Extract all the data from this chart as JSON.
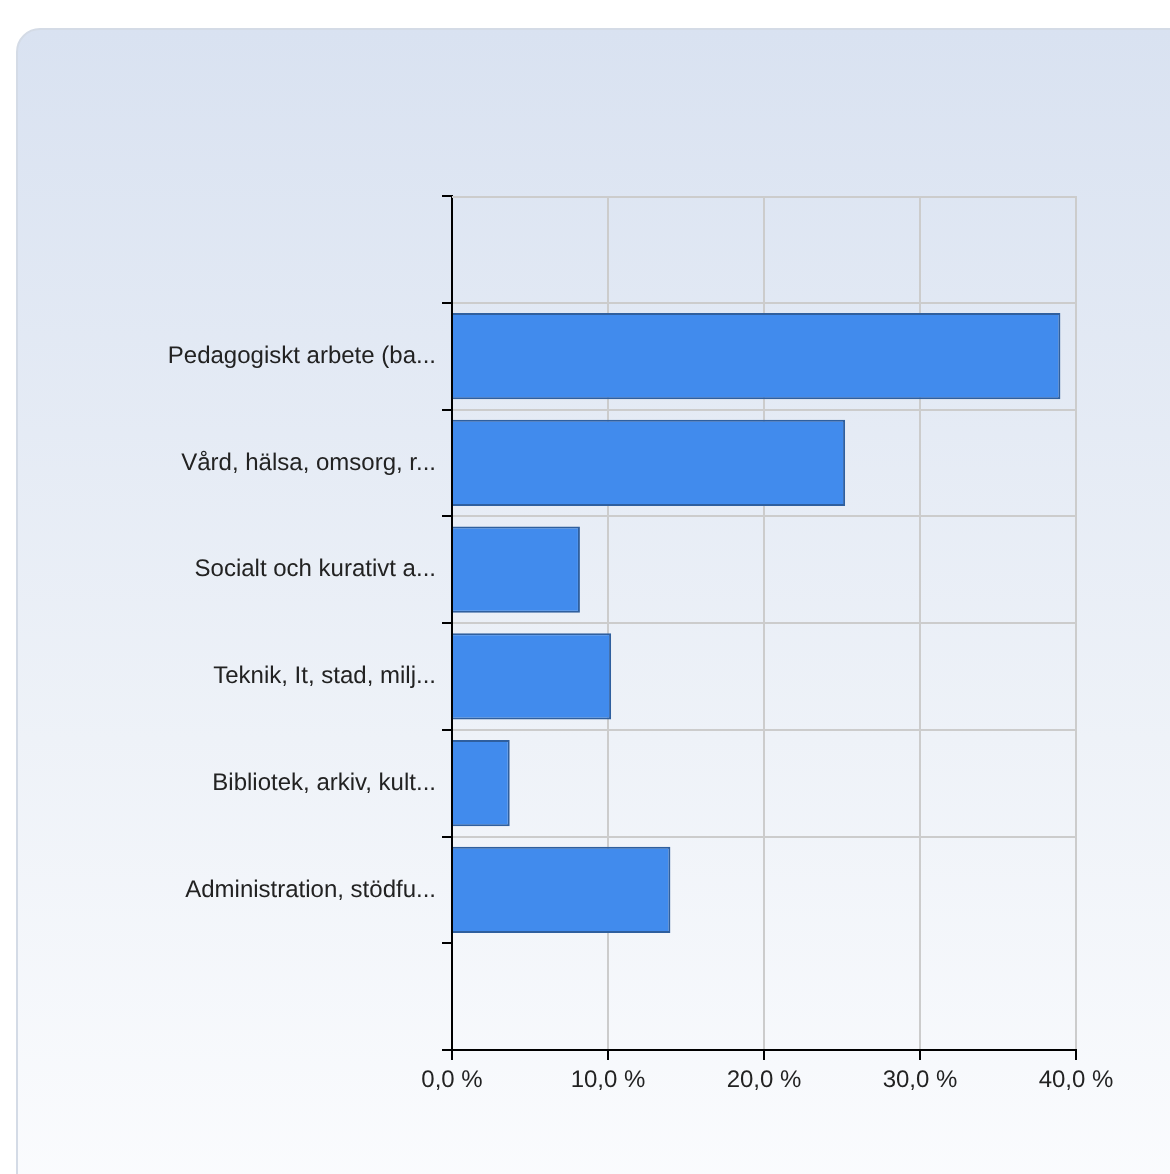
{
  "chart_data": {
    "type": "bar",
    "orientation": "horizontal",
    "categories": [
      "Pedagogiskt arbete (ba...",
      "Vård, hälsa, omsorg, r...",
      "Socialt och kurativt a...",
      "Teknik, It, stad, milj...",
      "Bibliotek, arkiv, kult...",
      "Administration, stödfu..."
    ],
    "values": [
      39.0,
      25.2,
      8.2,
      10.2,
      3.7,
      14.0
    ],
    "color": "#418bed",
    "xlim": [
      0,
      40
    ],
    "xticks": [
      {
        "value": 0,
        "label": "0,0 %"
      },
      {
        "value": 10,
        "label": "10,0 %"
      },
      {
        "value": 20,
        "label": "20,0 %"
      },
      {
        "value": 30,
        "label": "30,0 %"
      },
      {
        "value": 40,
        "label": "40,0 %"
      }
    ],
    "grid": true
  }
}
